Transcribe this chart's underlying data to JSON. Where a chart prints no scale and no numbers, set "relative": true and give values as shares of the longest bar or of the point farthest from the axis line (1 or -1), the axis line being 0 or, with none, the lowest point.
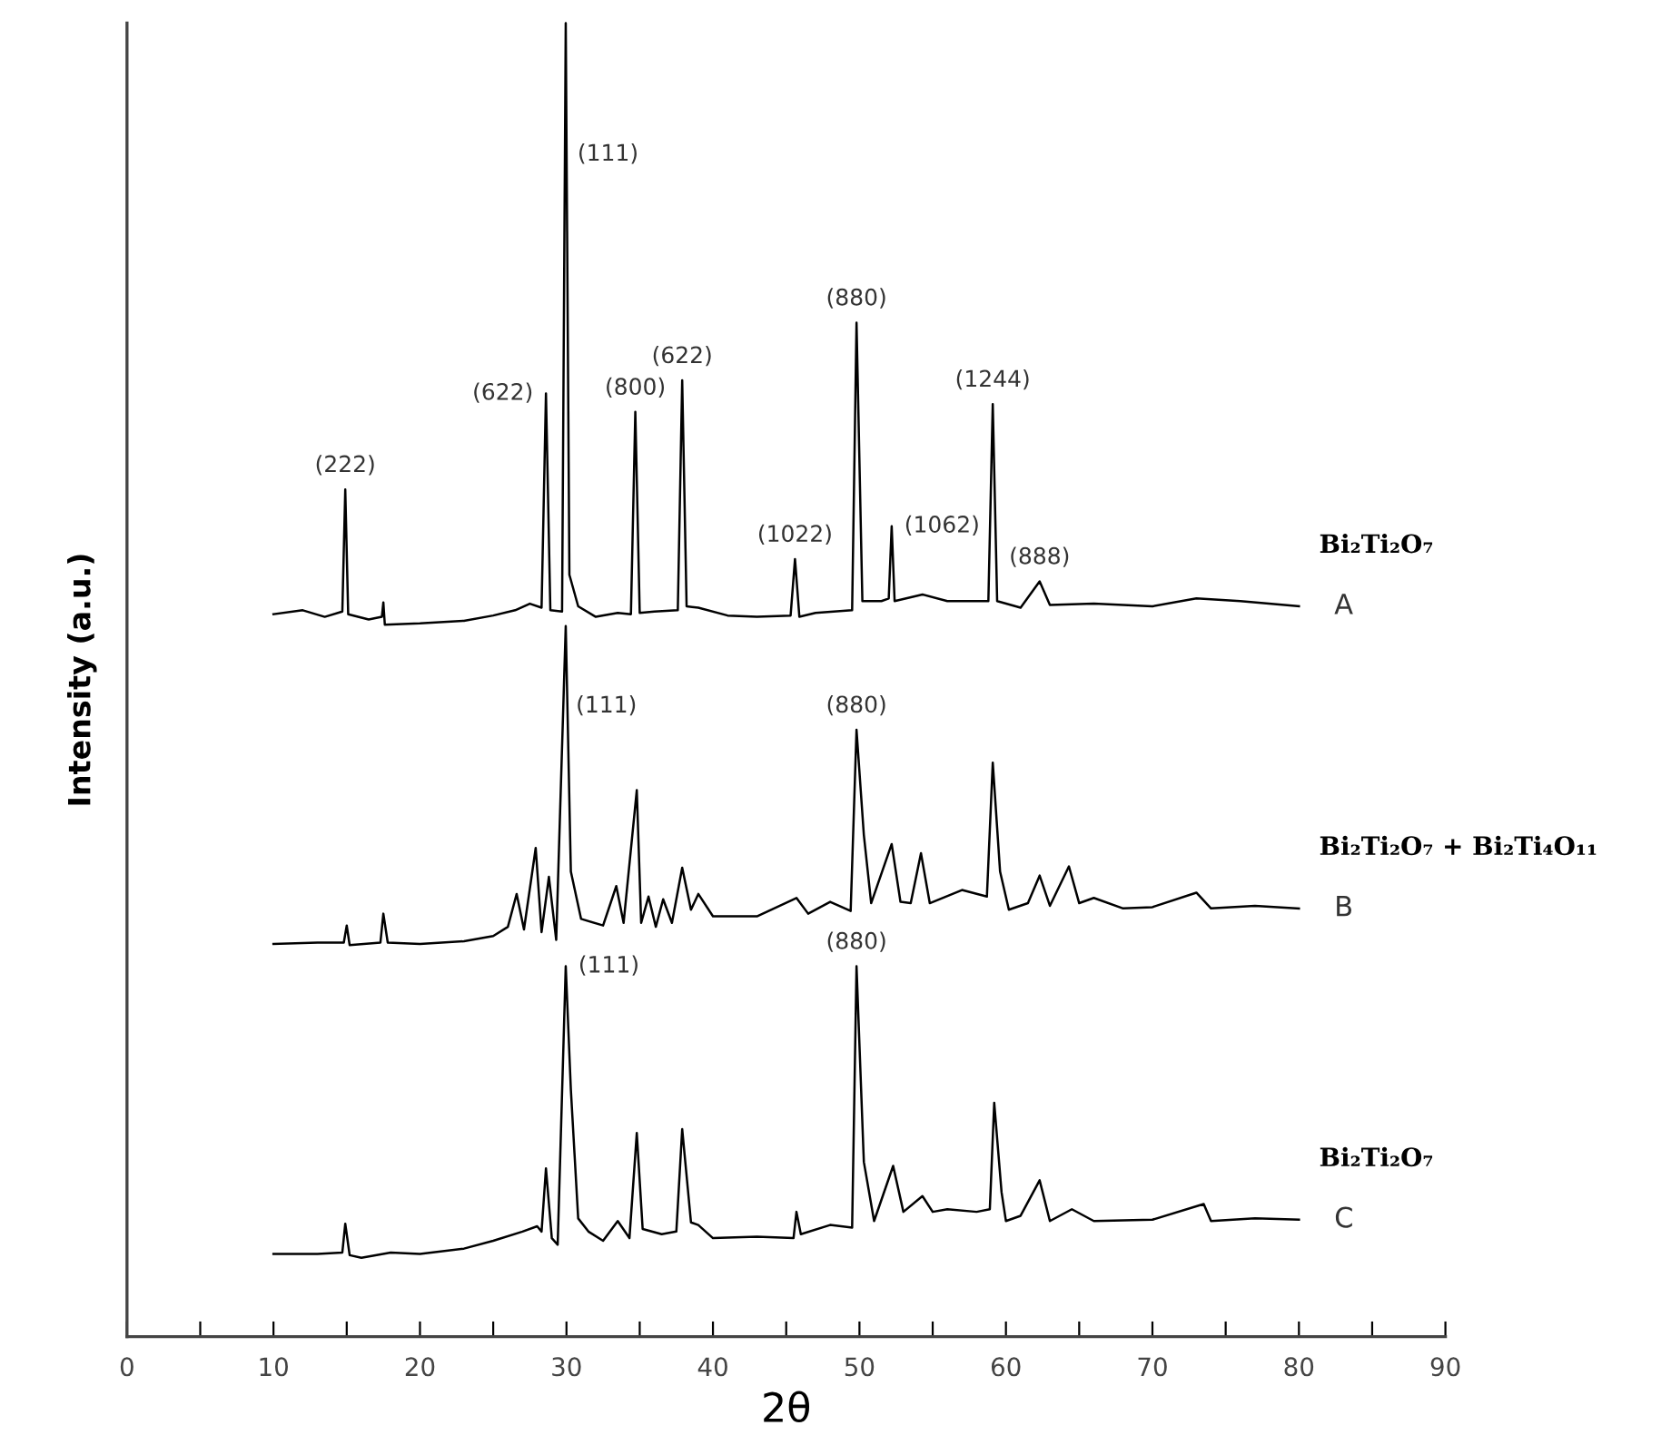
{
  "chart_data": {
    "type": "line",
    "relative": true,
    "xlabel": "2θ",
    "ylabel": "Intensity (a.u.)",
    "xlim": [
      0,
      90
    ],
    "xticks": [
      0,
      {
        "value": 5,
        "label": null
      },
      10,
      {
        "value": 15,
        "label": null
      },
      20,
      {
        "value": 25,
        "label": null
      },
      30,
      {
        "value": 35,
        "label": null
      },
      40,
      {
        "value": 45,
        "label": null
      },
      50,
      {
        "value": 55,
        "label": null
      },
      60,
      {
        "value": 65,
        "label": null
      },
      70,
      {
        "value": 75,
        "label": null
      },
      80,
      {
        "value": 85,
        "label": null
      },
      90
    ],
    "grid": false,
    "legend": false,
    "marker": "none",
    "line_style": "solid",
    "series": [
      {
        "name": "A",
        "color": "#000000",
        "x": [
          10,
          12,
          13.5,
          14.7,
          14.9,
          15.1,
          16.5,
          17.4,
          17.5,
          17.6,
          20,
          23,
          25,
          26.5,
          27.5,
          28.3,
          28.6,
          28.9,
          29.7,
          29.95,
          30.2,
          30.8,
          32,
          33.5,
          34.4,
          34.7,
          35.0,
          36,
          37.6,
          37.9,
          38.2,
          39,
          41,
          43,
          45.3,
          45.6,
          45.9,
          47,
          49.5,
          49.8,
          50.2,
          51.5,
          52.0,
          52.2,
          52.4,
          54.3,
          56,
          58.8,
          59.1,
          59.4,
          61,
          62.3,
          63,
          66,
          70,
          73,
          76,
          80
        ],
        "values": [
          0.55,
          0.553,
          0.548,
          0.552,
          0.645,
          0.55,
          0.546,
          0.548,
          0.559,
          0.542,
          0.543,
          0.545,
          0.549,
          0.553,
          0.558,
          0.555,
          0.718,
          0.553,
          0.552,
          1.0,
          0.58,
          0.556,
          0.548,
          0.551,
          0.55,
          0.704,
          0.551,
          0.552,
          0.553,
          0.728,
          0.556,
          0.555,
          0.549,
          0.548,
          0.549,
          0.592,
          0.548,
          0.551,
          0.553,
          0.772,
          0.56,
          0.56,
          0.562,
          0.617,
          0.56,
          0.565,
          0.56,
          0.56,
          0.71,
          0.56,
          0.555,
          0.575,
          0.557,
          0.558,
          0.556,
          0.562,
          0.56,
          0.556
        ]
      },
      {
        "name": "B",
        "color": "#000000",
        "x": [
          10,
          13,
          14.8,
          15,
          15.2,
          17.3,
          17.5,
          17.8,
          20,
          23,
          25,
          26.0,
          26.6,
          27.1,
          27.9,
          28.3,
          28.8,
          29.3,
          29.95,
          30.3,
          31,
          32.5,
          33.4,
          33.9,
          34.8,
          35.1,
          35.6,
          36.1,
          36.6,
          37.2,
          37.9,
          38.5,
          39,
          40,
          43,
          45.7,
          46.5,
          48,
          49.4,
          49.8,
          50.3,
          50.8,
          52.2,
          52.8,
          53.5,
          54.2,
          54.8,
          57,
          58.7,
          59.1,
          59.6,
          60.2,
          61.5,
          62.3,
          63,
          64.3,
          65,
          66,
          68,
          70,
          73,
          74,
          77,
          80
        ],
        "values": [
          0.299,
          0.3,
          0.3,
          0.313,
          0.298,
          0.3,
          0.322,
          0.3,
          0.299,
          0.301,
          0.305,
          0.312,
          0.337,
          0.31,
          0.372,
          0.308,
          0.35,
          0.302,
          0.541,
          0.354,
          0.318,
          0.313,
          0.343,
          0.315,
          0.416,
          0.315,
          0.335,
          0.312,
          0.333,
          0.315,
          0.357,
          0.325,
          0.337,
          0.32,
          0.32,
          0.334,
          0.322,
          0.331,
          0.324,
          0.462,
          0.382,
          0.33,
          0.375,
          0.331,
          0.33,
          0.368,
          0.33,
          0.34,
          0.335,
          0.437,
          0.354,
          0.325,
          0.33,
          0.351,
          0.328,
          0.358,
          0.33,
          0.334,
          0.326,
          0.327,
          0.338,
          0.326,
          0.328,
          0.326
        ]
      },
      {
        "name": "C",
        "color": "#000000",
        "x": [
          10,
          13,
          14.7,
          14.9,
          15.2,
          16,
          18,
          20,
          23,
          25,
          27,
          28,
          28.3,
          28.6,
          29.0,
          29.4,
          29.95,
          30.3,
          30.8,
          31.5,
          32.5,
          33.5,
          34.3,
          34.8,
          35.2,
          36.5,
          37.5,
          37.9,
          38.5,
          39,
          40,
          43,
          45.5,
          45.7,
          46,
          48,
          49.5,
          49.8,
          50.3,
          51,
          52.3,
          53,
          54.3,
          55,
          56,
          58,
          58.9,
          59.2,
          59.7,
          60,
          61,
          62.3,
          63,
          64.5,
          66,
          70,
          73.5,
          74,
          77,
          80
        ],
        "values": [
          0.063,
          0.063,
          0.064,
          0.086,
          0.062,
          0.06,
          0.064,
          0.063,
          0.067,
          0.073,
          0.08,
          0.084,
          0.08,
          0.128,
          0.075,
          0.07,
          0.282,
          0.188,
          0.09,
          0.08,
          0.073,
          0.088,
          0.075,
          0.155,
          0.082,
          0.078,
          0.08,
          0.158,
          0.087,
          0.085,
          0.075,
          0.076,
          0.075,
          0.095,
          0.078,
          0.085,
          0.083,
          0.282,
          0.133,
          0.088,
          0.13,
          0.095,
          0.107,
          0.095,
          0.097,
          0.095,
          0.097,
          0.178,
          0.11,
          0.088,
          0.092,
          0.119,
          0.088,
          0.097,
          0.088,
          0.089,
          0.101,
          0.088,
          0.09,
          0.089
        ]
      }
    ],
    "annotations": [
      {
        "text": "(222)",
        "x": 14.9,
        "y": 0.645
      },
      {
        "text": "(622)",
        "x": 28.6,
        "y": 0.718
      },
      {
        "text": "(111)",
        "x": 29.89,
        "y": 0.9
      },
      {
        "text": "(800)",
        "x": 34.7,
        "y": 0.704
      },
      {
        "text": "(622)",
        "x": 37.9,
        "y": 0.728
      },
      {
        "text": "(1022)",
        "x": 45.6,
        "y": 0.592
      },
      {
        "text": "(880)",
        "x": 49.8,
        "y": 0.772
      },
      {
        "text": "(1062)",
        "x": 52.2,
        "y": 0.617
      },
      {
        "text": "(1244)",
        "x": 59.1,
        "y": 0.71
      },
      {
        "text": "(888)",
        "x": 62.3,
        "y": 0.575
      },
      "Bi₂Ti₂O₇",
      {
        "text": "(111)",
        "x": 29.78,
        "y": 0.48
      },
      {
        "text": "(880)",
        "x": 49.8,
        "y": 0.462
      },
      "Bi₂Ti₂O₇ + Bi₂Ti₄O₁₁",
      {
        "text": "(111)",
        "x": 29.95,
        "y": 0.282
      },
      {
        "text": "(880)",
        "x": 49.8,
        "y": 0.282
      },
      "Bi₂Ti₂O₇"
    ]
  }
}
